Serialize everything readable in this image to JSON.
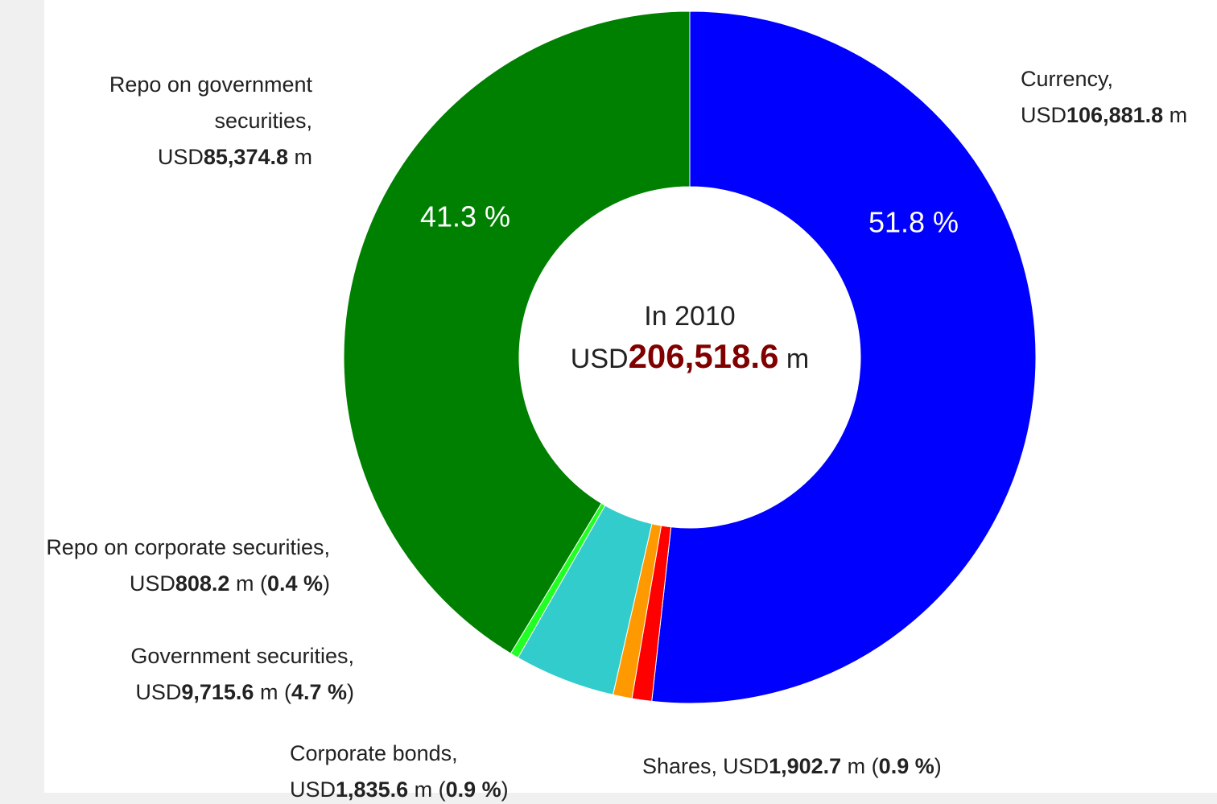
{
  "chart_data": {
    "type": "pie",
    "donut": true,
    "center_title": "In 2010",
    "unit_prefix": "USD",
    "unit_suffix": " m",
    "paren_open": " (",
    "paren_close": ")",
    "total": 206518.6,
    "total_label": "206,518.6",
    "categories": [
      "Currency,",
      "Shares,",
      "Corporate bonds,",
      "Government securities,",
      "Repo on corporate securities,",
      "Repo on government securities,"
    ],
    "values": [
      106881.8,
      1902.7,
      1835.6,
      9715.6,
      808.2,
      85374.8
    ],
    "value_labels": [
      "106,881.8",
      "1,902.7",
      "1,835.6",
      "9,715.6",
      "808.2",
      "85,374.8"
    ],
    "percents": [
      51.8,
      0.9,
      0.9,
      4.7,
      0.4,
      41.3
    ],
    "percent_labels": [
      "51.8 %",
      "0.9 %",
      "0.9 %",
      "4.7 %",
      "0.4 %",
      "41.3 %"
    ],
    "colors": [
      "#0000ff",
      "#ff0000",
      "#ff9900",
      "#33cccc",
      "#22ff22",
      "#008000"
    ],
    "total_color": "#800000"
  }
}
